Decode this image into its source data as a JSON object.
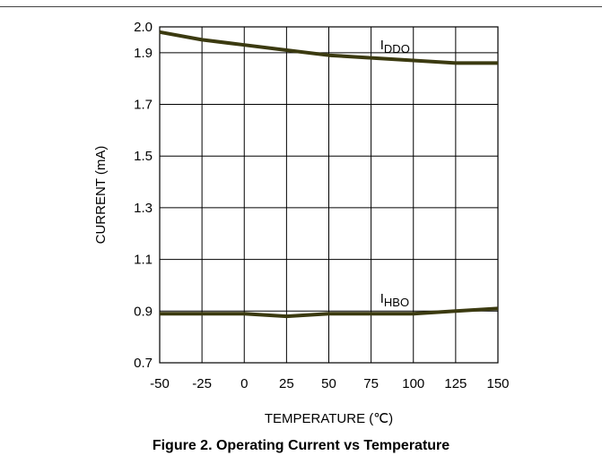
{
  "caption": "Figure 2. Operating Current vs Temperature",
  "chart_data": {
    "type": "line",
    "xlabel": "TEMPERATURE (℃)",
    "ylabel": "CURRENT (mA)",
    "xlim": [
      -50,
      150
    ],
    "ylim": [
      0.7,
      2.0
    ],
    "x_ticks": [
      -50,
      -25,
      0,
      25,
      50,
      75,
      100,
      125,
      150
    ],
    "y_ticks": [
      0.7,
      0.9,
      1.1,
      1.3,
      1.5,
      1.7,
      1.9,
      2.0
    ],
    "y_tick_labels": [
      "0.7",
      "0.9",
      "1.1",
      "1.3",
      "1.5",
      "1.7",
      "1.9",
      "2.0"
    ],
    "grid": true,
    "line_color": "#3b3a10",
    "series": [
      {
        "name": "I_DDO",
        "label_main": "I",
        "label_sub": "DDO",
        "x": [
          -50,
          -25,
          0,
          25,
          50,
          75,
          100,
          125,
          150
        ],
        "values": [
          1.98,
          1.95,
          1.93,
          1.91,
          1.89,
          1.88,
          1.87,
          1.86,
          1.86
        ]
      },
      {
        "name": "I_HBO",
        "label_main": "I",
        "label_sub": "HBO",
        "x": [
          -50,
          -25,
          0,
          25,
          50,
          75,
          100,
          125,
          150
        ],
        "values": [
          0.89,
          0.89,
          0.89,
          0.88,
          0.89,
          0.89,
          0.89,
          0.9,
          0.91
        ]
      }
    ]
  }
}
